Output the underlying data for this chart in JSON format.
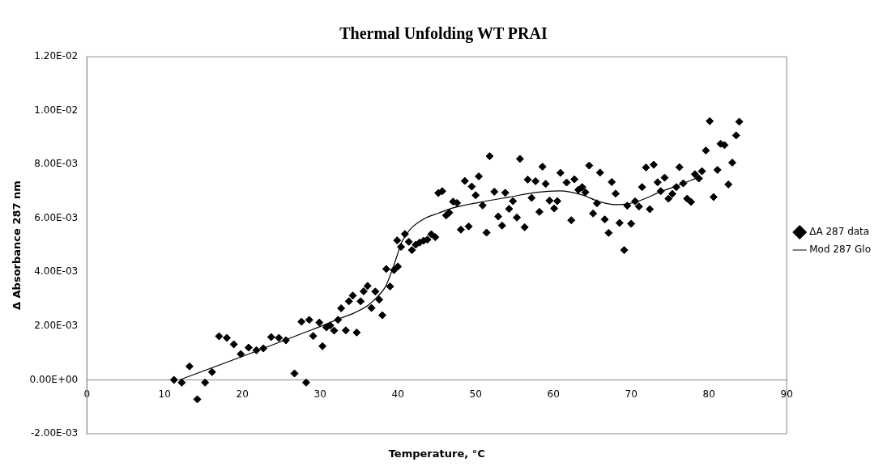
{
  "chart_data": {
    "type": "scatter",
    "title": "Thermal Unfolding WT PRAI",
    "xlabel": "Temperature, °C",
    "ylabel": "Δ Absorbance 287 nm",
    "xlim": [
      0,
      90
    ],
    "xticks": [
      0,
      10,
      20,
      30,
      40,
      50,
      60,
      70,
      80,
      90
    ],
    "ylim": [
      -0.002,
      0.012
    ],
    "yticks": [
      {
        "value": -0.002,
        "label": "-2.00E-03"
      },
      {
        "value": 0,
        "label": "0.00E+00"
      },
      {
        "value": 0.002,
        "label": "2.00E-03"
      },
      {
        "value": 0.004,
        "label": "4.00E-03"
      },
      {
        "value": 0.006,
        "label": "6.00E-03"
      },
      {
        "value": 0.008,
        "label": "8.00E-03"
      },
      {
        "value": 0.01,
        "label": "1.00E-02"
      },
      {
        "value": 0.012,
        "label": "1.20E-02"
      }
    ],
    "grid": false,
    "legend": "right",
    "series": [
      {
        "name": "ΔA 287 data",
        "marker": "diamond",
        "color": "#000000",
        "x": [
          11.2,
          12.2,
          13.2,
          14.2,
          15.2,
          16.1,
          17.0,
          18.0,
          18.9,
          19.8,
          20.8,
          21.8,
          22.7,
          23.7,
          24.7,
          25.6,
          26.7,
          27.6,
          28.2,
          28.6,
          29.1,
          29.9,
          30.3,
          30.8,
          31.3,
          31.8,
          32.3,
          32.7,
          33.3,
          33.7,
          34.2,
          34.7,
          35.2,
          35.6,
          36.1,
          36.6,
          37.1,
          37.6,
          38.0,
          38.5,
          39.0,
          39.5,
          40.0,
          39.9,
          40.4,
          40.9,
          41.4,
          41.8,
          42.3,
          42.8,
          43.3,
          43.8,
          44.3,
          44.8,
          45.2,
          45.7,
          46.2,
          46.6,
          47.1,
          47.6,
          48.1,
          48.6,
          49.1,
          49.5,
          50.0,
          50.4,
          50.9,
          51.4,
          51.8,
          52.4,
          52.9,
          53.4,
          53.8,
          54.3,
          54.8,
          55.3,
          55.7,
          56.3,
          56.7,
          57.2,
          57.7,
          58.2,
          58.6,
          59.0,
          59.5,
          60.1,
          60.5,
          60.9,
          61.7,
          62.3,
          62.7,
          63.2,
          63.7,
          64.1,
          64.6,
          65.1,
          65.6,
          66.0,
          66.6,
          67.1,
          67.5,
          68.0,
          68.5,
          69.1,
          69.5,
          70.0,
          70.5,
          71.0,
          71.4,
          71.9,
          72.4,
          72.9,
          73.4,
          73.8,
          74.3,
          74.8,
          75.3,
          75.8,
          76.2,
          76.7,
          77.2,
          77.7,
          78.2,
          78.7,
          79.1,
          79.6,
          80.1,
          80.6,
          81.1,
          81.5,
          82.0,
          82.5,
          83.0,
          83.5,
          83.9
        ],
        "values": [
          0.0,
          -0.0001,
          0.0005,
          -0.00072,
          -0.0001,
          0.00029,
          0.00162,
          0.00156,
          0.00132,
          0.00096,
          0.0012,
          0.0011,
          0.00117,
          0.00159,
          0.00156,
          0.00147,
          0.00024,
          0.00216,
          -0.0001,
          0.00223,
          0.00163,
          0.00213,
          0.00125,
          0.00195,
          0.00202,
          0.00183,
          0.00223,
          0.00266,
          0.00184,
          0.00292,
          0.00313,
          0.00176,
          0.00292,
          0.00329,
          0.00349,
          0.00267,
          0.00328,
          0.00298,
          0.0024,
          0.00412,
          0.00347,
          0.00408,
          0.00421,
          0.00518,
          0.00494,
          0.00542,
          0.00513,
          0.00482,
          0.00502,
          0.0051,
          0.00517,
          0.00521,
          0.00541,
          0.0053,
          0.00694,
          0.00701,
          0.00611,
          0.00621,
          0.00662,
          0.00657,
          0.00558,
          0.00739,
          0.0057,
          0.00718,
          0.00686,
          0.00756,
          0.00648,
          0.00547,
          0.00831,
          0.00699,
          0.00607,
          0.00573,
          0.00695,
          0.00635,
          0.00664,
          0.00603,
          0.00821,
          0.00567,
          0.00744,
          0.00676,
          0.00738,
          0.00624,
          0.00792,
          0.00728,
          0.00666,
          0.00637,
          0.00664,
          0.00769,
          0.00733,
          0.00593,
          0.00745,
          0.00706,
          0.00716,
          0.00697,
          0.00796,
          0.00618,
          0.00656,
          0.0077,
          0.00596,
          0.00546,
          0.00735,
          0.00692,
          0.00583,
          0.00482,
          0.00647,
          0.0058,
          0.00663,
          0.00644,
          0.00716,
          0.00789,
          0.00634,
          0.00799,
          0.00734,
          0.00701,
          0.00751,
          0.00673,
          0.00691,
          0.00716,
          0.0079,
          0.0073,
          0.00673,
          0.00661,
          0.00764,
          0.00748,
          0.00775,
          0.00852,
          0.00961,
          0.00679,
          0.0078,
          0.00877,
          0.00872,
          0.00726,
          0.00807,
          0.00908,
          0.00959
        ]
      },
      {
        "name": "Mod 287 Glo",
        "type": "line",
        "marker": "none",
        "line_style": "solid",
        "color": "#000000",
        "x": [
          11.9,
          20,
          29.0,
          30.5,
          32.6,
          34.4,
          36.2,
          37.3,
          38.4,
          39.1,
          39.8,
          40.5,
          41.6,
          43.4,
          45.2,
          47.0,
          50.6,
          54.3,
          57.9,
          60.8,
          63.7,
          65.8,
          68.0,
          69.4,
          71.3,
          73.8,
          75.9,
          78.5
        ],
        "values": [
          0,
          0.00087,
          0.00187,
          0.00204,
          0.00229,
          0.00249,
          0.00278,
          0.00307,
          0.00346,
          0.00395,
          0.00453,
          0.00512,
          0.0056,
          0.00599,
          0.00619,
          0.00638,
          0.0066,
          0.00679,
          0.00697,
          0.00702,
          0.00687,
          0.00663,
          0.00651,
          0.00653,
          0.00668,
          0.00699,
          0.00721,
          0.00751
        ]
      }
    ]
  }
}
